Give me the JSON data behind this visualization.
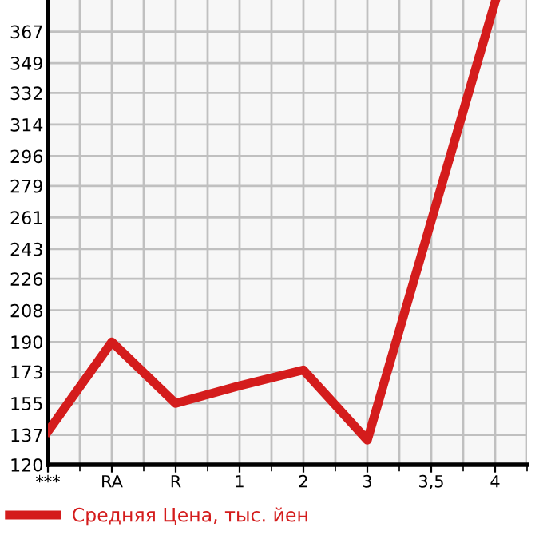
{
  "chart_data": {
    "type": "line",
    "categories": [
      "***",
      "RA",
      "R",
      "1",
      "2",
      "3",
      "3,5",
      "4"
    ],
    "series": [
      {
        "name": "Средняя Цена, тыс. йен",
        "color": "#d41c1c",
        "values": [
          139,
          190,
          155,
          165,
          174,
          134,
          259,
          384
        ]
      }
    ],
    "ylim": [
      120,
      385
    ],
    "yticks": [
      120,
      137,
      155,
      173,
      190,
      208,
      226,
      243,
      261,
      279,
      296,
      314,
      332,
      349,
      367
    ],
    "grid": true,
    "legend": "bottom left",
    "marker": "none",
    "line_style": "solid"
  }
}
